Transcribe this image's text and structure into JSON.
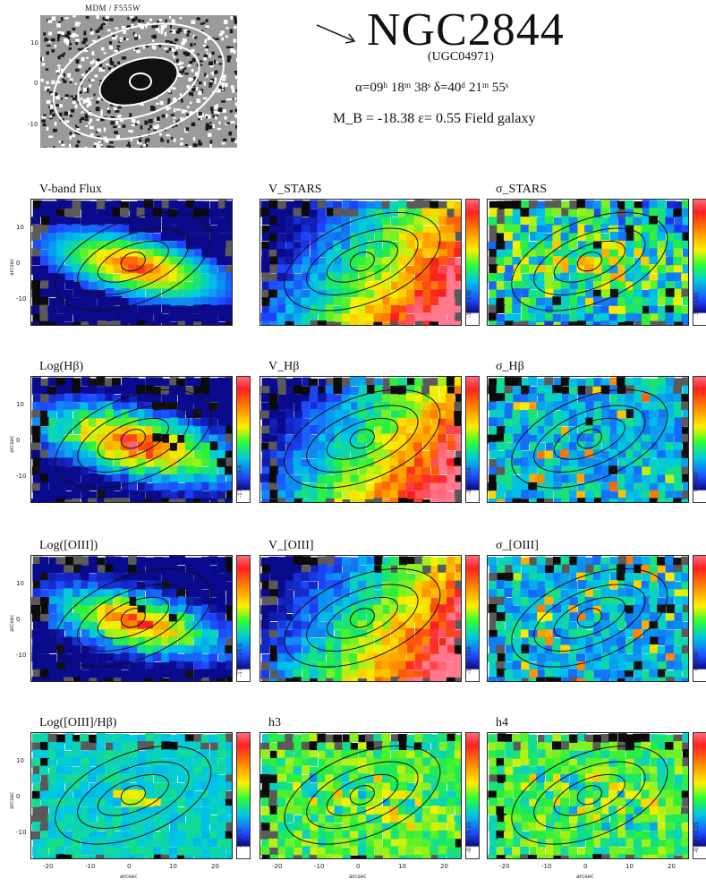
{
  "header": {
    "galaxy_name": "NGC2844",
    "alt_name": "(UGC04971)",
    "coordinates": "α=09ʰ 18ᵐ 38ˢ    δ=40ᵈ 21ᵐ 55ˢ",
    "magnitude_line": "M_B = -18.38    ε= 0.55    Field galaxy"
  },
  "hst_image": {
    "label": "MDM / F555W",
    "yticks": [
      "10",
      "0",
      "-10"
    ]
  },
  "panels": [
    {
      "title": "V-band Flux",
      "kind": "flux",
      "range": ""
    },
    {
      "title": "V_STARS",
      "kind": "vel",
      "range": "-190 / 130"
    },
    {
      "title": "σ_STARS",
      "kind": "sig",
      "range": "30 / 133"
    },
    {
      "title": "Log(Hβ)",
      "kind": "flux2",
      "range": "-17.5 / -15.5"
    },
    {
      "title": "V_Hβ",
      "kind": "vel",
      "range": "-158 / 158"
    },
    {
      "title": "σ_Hβ",
      "kind": "sig2",
      "range": "0 / 200"
    },
    {
      "title": "Log([OIII])",
      "kind": "flux3",
      "range": "-17.5 / -15.5"
    },
    {
      "title": "V_[OIII]",
      "kind": "vel",
      "range": "-158 / 158"
    },
    {
      "title": "σ_[OIII]",
      "kind": "sig2",
      "range": "0 / 200"
    },
    {
      "title": "Log([OIII]/Hβ)",
      "kind": "ratio",
      "range": "-1.2 / 1"
    },
    {
      "title": "h3",
      "kind": "h3",
      "range": "-0.15 / 0.15"
    },
    {
      "title": "h4",
      "kind": "h3",
      "range": "-0.15 / 0.15"
    }
  ],
  "axes": {
    "yticks": [
      "10",
      "0",
      "-10"
    ],
    "xticks": [
      "-20",
      "-10",
      "0",
      "10",
      "20"
    ],
    "xlabel": "arcsec",
    "ylabel": "arcsec"
  }
}
